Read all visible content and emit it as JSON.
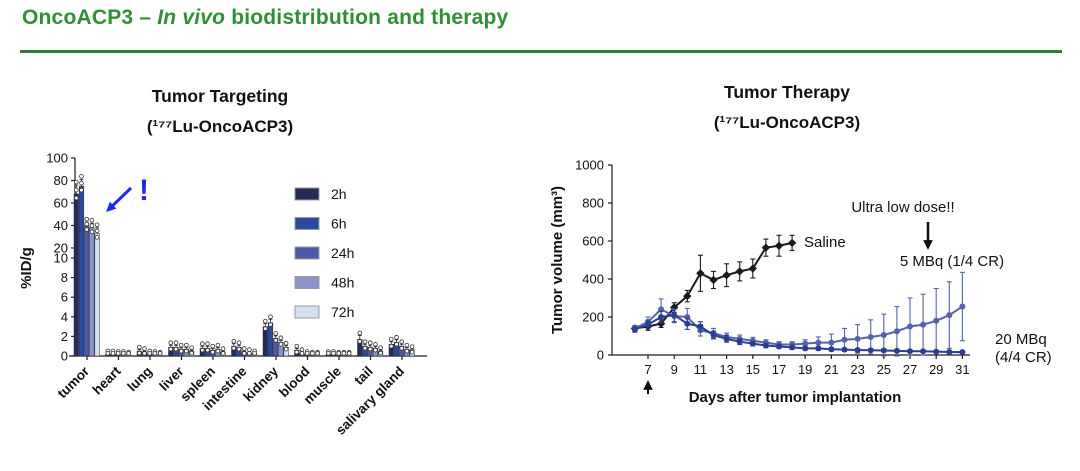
{
  "header": {
    "title_prefix": "OncoACP3 – ",
    "title_italic": "In vivo",
    "title_suffix": " biodistribution and therapy",
    "accent_color": "#2e7d32"
  },
  "chart_data": [
    {
      "type": "bar",
      "title": "Tumor Targeting",
      "subtitle": "(¹⁷⁷Lu-OncoACP3)",
      "ylabel": "%ID/g",
      "axis_break": {
        "upper_range": [
          20,
          100
        ],
        "lower_range": [
          0,
          10
        ],
        "upper_ticks": [
          20,
          40,
          60,
          80,
          100
        ],
        "lower_ticks": [
          0,
          2,
          4,
          6,
          8,
          10
        ]
      },
      "categories": [
        "tumor",
        "heart",
        "lung",
        "liver",
        "spleen",
        "intestine",
        "kidney",
        "blood",
        "muscle",
        "tail",
        "salivary gland"
      ],
      "series": [
        {
          "name": "2h",
          "color": "#262a58",
          "values": [
            68,
            0.2,
            0.5,
            0.9,
            0.8,
            1.0,
            3.0,
            0.6,
            0.15,
            1.7,
            1.2
          ],
          "errors": [
            8,
            0.05,
            0.15,
            0.2,
            0.2,
            0.25,
            0.3,
            0.15,
            0.05,
            0.4,
            0.25
          ]
        },
        {
          "name": "6h",
          "color": "#2b4a9d",
          "values": [
            75,
            0.2,
            0.4,
            0.9,
            0.8,
            0.9,
            3.4,
            0.3,
            0.15,
            1.0,
            1.4
          ],
          "errors": [
            6,
            0.05,
            0.1,
            0.2,
            0.2,
            0.2,
            0.35,
            0.1,
            0.05,
            0.2,
            0.25
          ]
        },
        {
          "name": "24h",
          "color": "#4d5ba6",
          "values": [
            40,
            0.15,
            0.2,
            0.7,
            0.6,
            0.4,
            1.8,
            0.15,
            0.1,
            0.9,
            1.0
          ],
          "errors": [
            3,
            0.05,
            0.05,
            0.15,
            0.15,
            0.1,
            0.25,
            0.05,
            0.03,
            0.2,
            0.2
          ]
        },
        {
          "name": "48h",
          "color": "#8b93c8",
          "values": [
            38,
            0.15,
            0.15,
            0.7,
            0.7,
            0.3,
            1.4,
            0.1,
            0.1,
            0.8,
            0.7
          ],
          "errors": [
            4,
            0.05,
            0.05,
            0.15,
            0.15,
            0.1,
            0.2,
            0.05,
            0.03,
            0.15,
            0.15
          ]
        },
        {
          "name": "72h",
          "color": "#d3e0f2",
          "values": [
            33,
            0.1,
            0.1,
            0.5,
            0.4,
            0.2,
            0.9,
            0.1,
            0.1,
            0.5,
            0.6
          ],
          "errors": [
            5,
            0.03,
            0.03,
            0.1,
            0.1,
            0.05,
            0.15,
            0.03,
            0.03,
            0.1,
            0.1
          ]
        }
      ],
      "legend_position": "upper-right-inside",
      "annotations": {
        "alert": "!",
        "alert_color": "#1b2bea",
        "alert_target": "48h tumor bar"
      }
    },
    {
      "type": "line",
      "title": "Tumor Therapy",
      "subtitle": "(¹⁷⁷Lu-OncoACP3)",
      "xlabel": "Days after tumor implantation",
      "ylabel": "Tumor volume (mm³)",
      "ylim": [
        0,
        1000
      ],
      "yticks": [
        0,
        200,
        400,
        600,
        800,
        1000
      ],
      "xticks": [
        7,
        9,
        11,
        13,
        15,
        17,
        19,
        21,
        23,
        25,
        27,
        29,
        31
      ],
      "series": [
        {
          "name": "Saline",
          "color": "#1a1a1a",
          "marker": "diamond",
          "x": [
            6,
            7,
            8,
            9,
            10,
            11,
            12,
            13,
            14,
            15,
            16,
            17,
            18
          ],
          "values": [
            140,
            150,
            165,
            250,
            310,
            430,
            395,
            420,
            440,
            455,
            565,
            575,
            590
          ],
          "errors": [
            15,
            20,
            20,
            25,
            30,
            95,
            45,
            60,
            50,
            50,
            45,
            55,
            40
          ]
        },
        {
          "name": "5 MBq (1/4 CR)",
          "color": "#5563ac",
          "marker": "circle",
          "x": [
            6,
            7,
            8,
            9,
            10,
            11,
            12,
            13,
            14,
            15,
            16,
            17,
            18,
            19,
            20,
            21,
            22,
            23,
            24,
            25,
            26,
            27,
            28,
            29,
            30,
            31
          ],
          "values": [
            140,
            175,
            240,
            205,
            200,
            130,
            115,
            95,
            85,
            75,
            65,
            55,
            55,
            60,
            65,
            65,
            80,
            85,
            95,
            105,
            125,
            150,
            160,
            180,
            210,
            255
          ],
          "errors": [
            15,
            25,
            55,
            35,
            45,
            30,
            25,
            20,
            20,
            18,
            15,
            15,
            15,
            20,
            30,
            45,
            60,
            75,
            90,
            110,
            130,
            150,
            160,
            170,
            175,
            180
          ]
        },
        {
          "name": "20 MBq (4/4 CR)",
          "color": "#2c3e8f",
          "marker": "circle",
          "x": [
            6,
            7,
            8,
            9,
            10,
            11,
            12,
            13,
            14,
            15,
            16,
            17,
            18,
            19,
            20,
            21,
            22,
            23,
            24,
            25,
            26,
            27,
            28,
            29,
            30,
            31
          ],
          "values": [
            135,
            160,
            200,
            210,
            165,
            150,
            105,
            85,
            70,
            60,
            50,
            45,
            40,
            35,
            35,
            30,
            28,
            26,
            25,
            24,
            22,
            20,
            20,
            18,
            16,
            15
          ],
          "errors": [
            15,
            20,
            30,
            35,
            30,
            25,
            20,
            18,
            15,
            12,
            12,
            10,
            10,
            10,
            10,
            8,
            8,
            8,
            8,
            8,
            8,
            6,
            6,
            6,
            6,
            6
          ]
        }
      ],
      "annotations": {
        "ultra_low_dose": "Ultra low dose!!",
        "saline_label": "Saline",
        "mbq5_label": "5 MBq (1/4 CR)",
        "mbq20_label_line1": "20 MBq",
        "mbq20_label_line2": "(4/4 CR)",
        "injection_day": 7
      }
    }
  ]
}
